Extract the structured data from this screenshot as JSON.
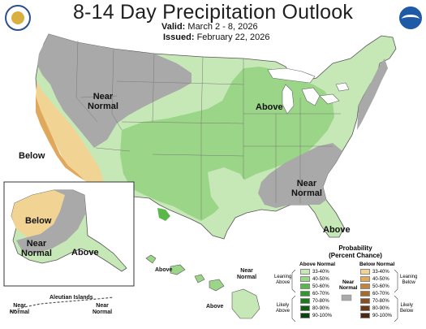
{
  "title": "8-14 Day Precipitation Outlook",
  "valid": {
    "label": "Valid:",
    "value": "March 2 - 8, 2026"
  },
  "issued": {
    "label": "Issued:",
    "value": "February 22, 2026"
  },
  "regions": {
    "near_normal_west": "Near\nNormal",
    "above_midwest": "Above",
    "below_california": "Below",
    "near_normal_southeast": "Near\nNormal",
    "above_florida": "Above"
  },
  "alaska": {
    "below": "Below",
    "near_normal": "Near\nNormal",
    "above": "Above",
    "aleutian": "Aleutian Islands",
    "near_normal_aleutian_left": "Near\nNormal",
    "near_normal_aleutian_right": "Near\nNormal"
  },
  "hawaii": {
    "above_west": "Above",
    "above_east": "Above",
    "near_normal": "Near\nNormal"
  },
  "legend": {
    "title": "Probability\n(Percent Chance)",
    "above_heading": "Above Normal",
    "below_heading": "Below Normal",
    "near_heading": "Near\nNormal",
    "leaning_above": "Leaning\nAbove",
    "likely_above": "Likely\nAbove",
    "leaning_below": "Leaning\nBelow",
    "likely_below": "Likely\nBelow",
    "above_bins": [
      {
        "label": "33-40%",
        "color": "#c6e8b7"
      },
      {
        "label": "40-50%",
        "color": "#9bd587"
      },
      {
        "label": "50-60%",
        "color": "#5ab84b"
      },
      {
        "label": "60-70%",
        "color": "#2e9a2c"
      },
      {
        "label": "70-80%",
        "color": "#1a7c1f"
      },
      {
        "label": "80-90%",
        "color": "#0f5e15"
      },
      {
        "label": "90-100%",
        "color": "#07420c"
      }
    ],
    "below_bins": [
      {
        "label": "33-40%",
        "color": "#f1d493"
      },
      {
        "label": "40-50%",
        "color": "#dfa85a"
      },
      {
        "label": "50-60%",
        "color": "#c4853a"
      },
      {
        "label": "60-70%",
        "color": "#a9692a"
      },
      {
        "label": "70-80%",
        "color": "#8a4f1e"
      },
      {
        "label": "80-90%",
        "color": "#6c3915"
      },
      {
        "label": "90-100%",
        "color": "#4e260d"
      }
    ],
    "near_color": "#a9a9a9"
  },
  "colors": {
    "above_light": "#c6e8b7",
    "above_medium": "#9bd587",
    "above_strong": "#5ab84b",
    "below_light": "#f1d493",
    "below_medium": "#dfa85a",
    "near_normal": "#a9a9a9",
    "lakes": "#ffffff"
  }
}
